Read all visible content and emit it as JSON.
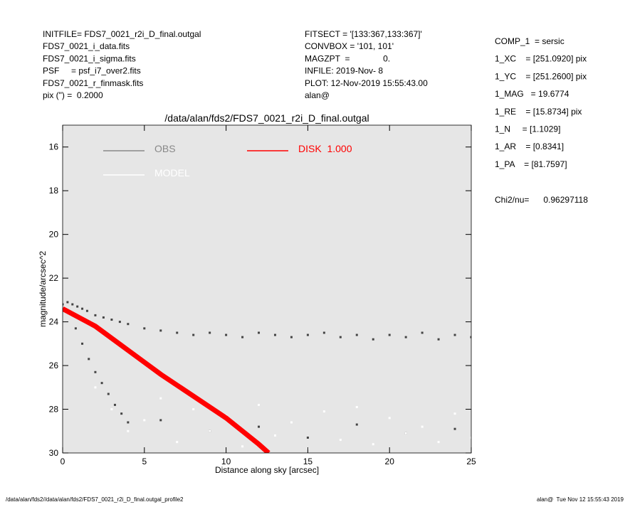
{
  "header_left": [
    "INITFILE= FDS7_0021_r2i_D_final.outgal",
    "FDS7_0021_i_data.fits",
    "FDS7_0021_i_sigma.fits",
    "PSF     = psf_i7_over2.fits",
    "FDS7_0021_r_finmask.fits",
    "pix (\") =  0.2000"
  ],
  "header_mid": [
    "FITSECT = '[133:367,133:367]'",
    "CONVBOX = '101, 101'",
    "MAGZPT  =              0.",
    "INFILE: 2019-Nov- 8",
    "PLOT: 12-Nov-2019 15:55:43.00",
    "alan@"
  ],
  "header_right": [
    "COMP_1  = sersic",
    "1_XC    = [251.0920] pix",
    "1_YC    = [251.2600] pix",
    "1_MAG   = 19.6774",
    "1_RE    = [15.8734] pix",
    "1_N     = [1.1029]",
    "1_AR    = [0.8341]",
    "1_PA    = [81.7597]"
  ],
  "chi2": "Chi2/nu=      0.96297118",
  "footer_left": "/data/alan/fds2//data/alan/fds2/FDS7_0021_r2i_D_final.outgal_profile2",
  "footer_right": "alan@  Tue Nov 12 15:55:43 2019",
  "chart_data": {
    "type": "scatter",
    "title": "/data/alan/fds2/FDS7_0021_r2i_D_final.outgal",
    "xlabel": "Distance along sky [arcsec]",
    "ylabel": "magnitude/arcsec^2",
    "xlim": [
      0,
      25
    ],
    "ylim": [
      30,
      15
    ],
    "xticks": [
      0,
      5,
      10,
      15,
      20,
      25
    ],
    "yticks": [
      16,
      18,
      20,
      22,
      24,
      26,
      28,
      30
    ],
    "series": [
      {
        "name": "OBS",
        "color": "#444444",
        "legend_color": "#888888",
        "x": [
          0,
          0.3,
          0.6,
          0.9,
          1.2,
          1.5,
          2,
          2.5,
          3,
          3.5,
          4,
          5,
          6,
          7,
          8,
          9,
          10,
          11,
          12,
          13,
          14,
          15,
          16,
          17,
          18,
          19,
          20,
          21,
          22,
          23,
          24,
          25,
          0.8,
          1.2,
          1.6,
          2,
          2.4,
          2.8,
          3.2,
          3.6,
          4,
          6,
          9,
          12,
          15,
          18,
          21,
          24
        ],
        "values": [
          23.2,
          23.1,
          23.2,
          23.3,
          23.4,
          23.5,
          23.7,
          23.8,
          23.9,
          24.0,
          24.1,
          24.3,
          24.4,
          24.5,
          24.6,
          24.5,
          24.6,
          24.7,
          24.5,
          24.6,
          24.7,
          24.6,
          24.5,
          24.7,
          24.6,
          24.8,
          24.6,
          24.7,
          24.5,
          24.8,
          24.6,
          24.7,
          24.3,
          25,
          25.7,
          26.3,
          26.8,
          27.3,
          27.8,
          28.2,
          28.6,
          28.5,
          29,
          28.8,
          29.3,
          28.7,
          29.1,
          28.9
        ]
      },
      {
        "name": "MODEL",
        "color": "#ffffff",
        "legend_color": "#ffffff",
        "x": [
          2,
          3,
          4,
          5,
          6,
          7,
          8,
          9,
          10,
          11,
          12,
          13,
          14,
          15,
          16,
          17,
          18,
          19,
          20,
          21,
          22,
          23,
          24,
          25
        ],
        "values": [
          27,
          28,
          29,
          28.5,
          27.5,
          29.5,
          28,
          29,
          28.3,
          29.7,
          27.8,
          29.2,
          28.6,
          29.8,
          28.1,
          29.4,
          27.9,
          29.6,
          28.4,
          29.1,
          28.8,
          29.5,
          28.2,
          29.3
        ]
      },
      {
        "name": "DISK  1.000",
        "color": "#ff0000",
        "legend_color": "#ff0000",
        "line": true,
        "x": [
          0,
          2,
          4,
          6,
          8,
          10,
          12,
          12.6
        ],
        "values": [
          23.4,
          24.2,
          25.3,
          26.4,
          27.4,
          28.4,
          29.6,
          30
        ]
      }
    ]
  }
}
